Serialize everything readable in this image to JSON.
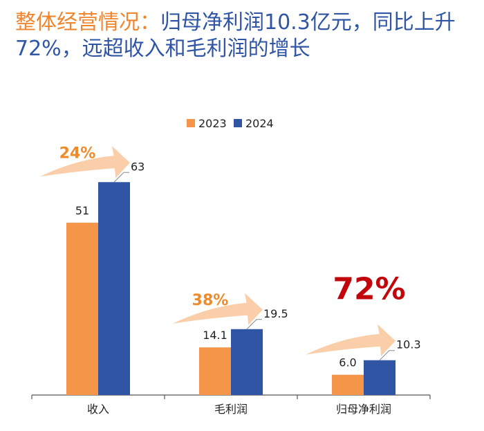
{
  "title": {
    "highlight": "整体经营情况：",
    "rest": "归母净利润10.3亿元，同比上升72%，远超收入和毛利润的增长"
  },
  "colors": {
    "series_2023": "#f5954a",
    "series_2024": "#2f55a4",
    "arrow": "#f8c9a0",
    "growth_orange": "#ef8a2a",
    "growth_red": "#c0080c"
  },
  "chart_data": {
    "type": "bar",
    "categories": [
      "收入",
      "毛利润",
      "归母净利润"
    ],
    "series": [
      {
        "name": "2023",
        "values": [
          51,
          14.1,
          6.0
        ],
        "labels": [
          "51",
          "14.1",
          "6.0"
        ]
      },
      {
        "name": "2024",
        "values": [
          63,
          19.5,
          10.3
        ],
        "labels": [
          "63",
          "19.5",
          "10.3"
        ]
      }
    ],
    "growth": [
      "24%",
      "38%",
      "72%"
    ],
    "ylim": [
      0,
      78
    ],
    "legend_position": "top-center",
    "grid": false
  }
}
